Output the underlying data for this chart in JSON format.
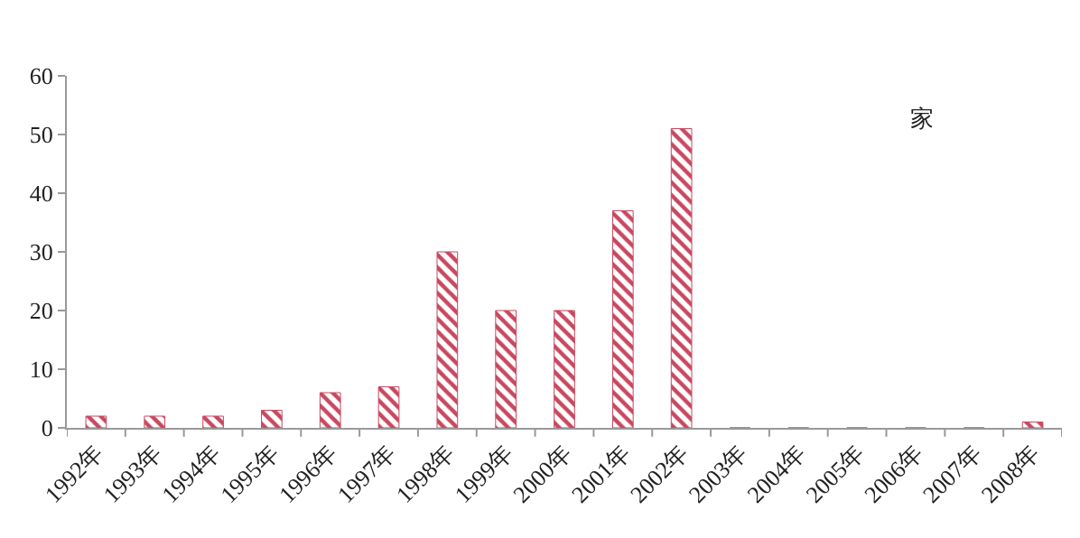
{
  "chart_data": {
    "type": "bar",
    "categories": [
      "1992年",
      "1993年",
      "1994年",
      "1995年",
      "1996年",
      "1997年",
      "1998年",
      "1999年",
      "2000年",
      "2001年",
      "2002年",
      "2003年",
      "2004年",
      "2005年",
      "2006年",
      "2007年",
      "2008年"
    ],
    "values": [
      2,
      2,
      2,
      3,
      6,
      7,
      30,
      20,
      20,
      37,
      51,
      0,
      0,
      0,
      0,
      0,
      1
    ],
    "color": "#c8485f",
    "ylim": [
      0,
      60
    ],
    "yticks": [
      0,
      10,
      20,
      30,
      40,
      50,
      60
    ],
    "grid": false,
    "legend": false,
    "annotations": [
      "家"
    ]
  }
}
